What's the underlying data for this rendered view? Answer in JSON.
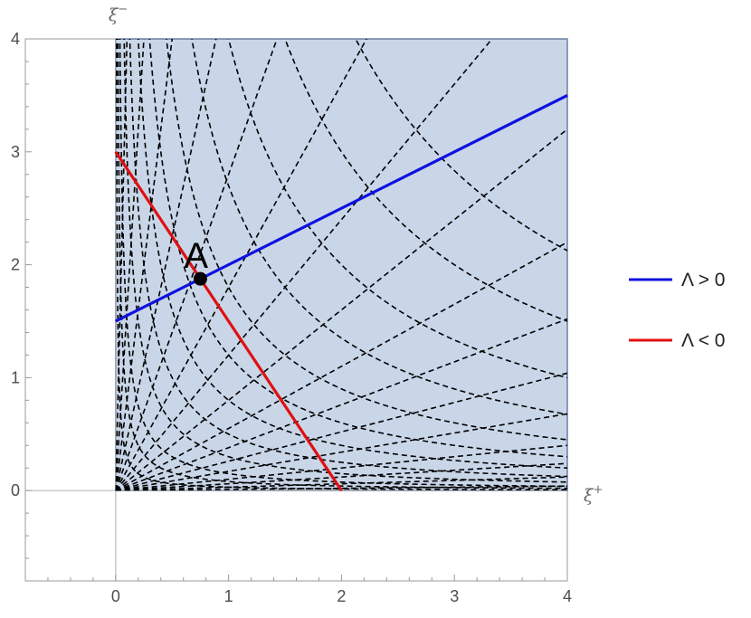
{
  "chart_data": {
    "type": "line",
    "xlabel": "ξ",
    "xlabel_sup": "+",
    "ylabel": "ξ",
    "ylabel_sup": "−",
    "xlim": [
      -0.8,
      4
    ],
    "ylim": [
      -0.8,
      4
    ],
    "xticks": [
      0,
      1,
      2,
      3,
      4
    ],
    "yticks": [
      0,
      1,
      2,
      3,
      4
    ],
    "xtick_labels": [
      "0",
      "1",
      "2",
      "3",
      "4"
    ],
    "ytick_labels": [
      "0",
      "1",
      "2",
      "3",
      "4"
    ],
    "grid": false,
    "legend_position": "right",
    "region": {
      "x": [
        0,
        4
      ],
      "y": [
        0,
        4
      ],
      "fill_color": "#c9d6e8",
      "edge_color": "#6b7ea3"
    },
    "series": [
      {
        "name": "Λ > 0",
        "color": "#1010e0",
        "x": [
          0,
          4
        ],
        "y": [
          1.5,
          3.5
        ]
      },
      {
        "name": "Λ < 0",
        "color": "#e01010",
        "x": [
          0,
          2
        ],
        "y": [
          3,
          0
        ]
      }
    ],
    "dashed_families": {
      "color": "#000000",
      "hyperbola_products": [
        0.03,
        0.08,
        0.15,
        0.3,
        0.5,
        0.8,
        1.2,
        1.8,
        2.7,
        4,
        6,
        8.5
      ],
      "ray_slopes": [
        0.01,
        0.03,
        0.06,
        0.1,
        0.17,
        0.26,
        0.38,
        0.55,
        0.8,
        1.2,
        1.8,
        2.8,
        4.5,
        8,
        16,
        40
      ]
    },
    "annotations": [
      {
        "text": "A",
        "x": 0.75,
        "y": 1.875
      }
    ],
    "point_color": "#000000"
  }
}
